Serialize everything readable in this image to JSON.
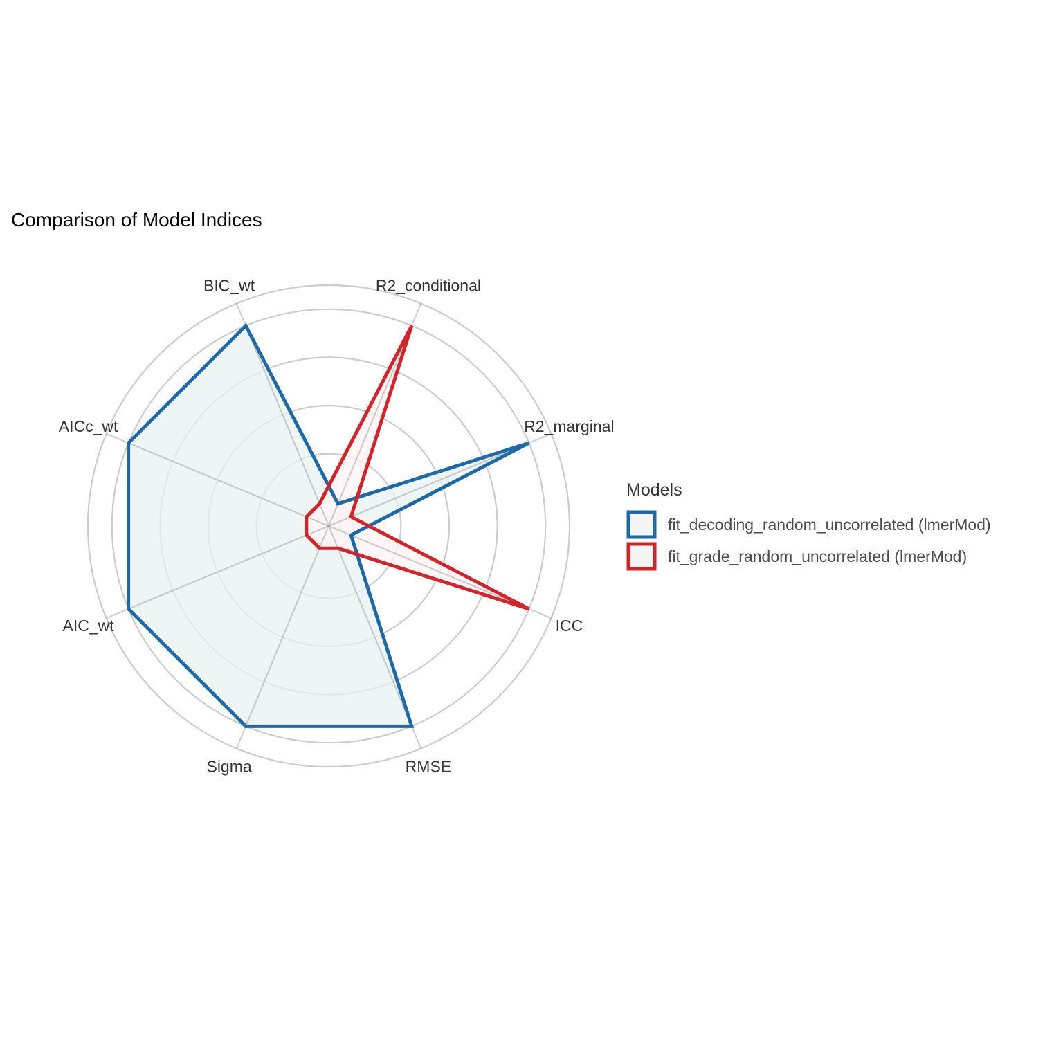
{
  "chart_data": {
    "type": "radar",
    "title": "Comparison of Model Indices",
    "axes": [
      "R2_conditional",
      "R2_marginal",
      "ICC",
      "RMSE",
      "Sigma",
      "AIC_wt",
      "AICc_wt",
      "BIC_wt"
    ],
    "scale": [
      0,
      1
    ],
    "grid": true,
    "grid_levels": [
      0.1,
      0.3,
      0.5,
      0.7,
      0.9,
      1.0
    ],
    "legend": {
      "title": "Models",
      "position": "right"
    },
    "series": [
      {
        "name": "fit_decoding_random_uncorrelated (lmerMod)",
        "color": "#1f6aa5",
        "fill": "#e8f2f2",
        "values": [
          0.1,
          0.9,
          0.1,
          0.9,
          0.9,
          0.9,
          0.9,
          0.9
        ]
      },
      {
        "name": "fit_grade_random_uncorrelated (lmerMod)",
        "color": "#d1252b",
        "fill": "#fdf3f4",
        "values": [
          0.9,
          0.1,
          0.9,
          0.1,
          0.1,
          0.1,
          0.1,
          0.1
        ]
      }
    ]
  }
}
